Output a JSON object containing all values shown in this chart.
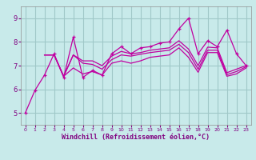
{
  "background_color": "#c8eaea",
  "grid_color": "#a0c8c8",
  "line_color": "#c000a0",
  "xlabel": "Windchill (Refroidissement éolien,°C)",
  "xlim": [
    -0.5,
    23.5
  ],
  "ylim": [
    4.5,
    9.5
  ],
  "yticks": [
    5,
    6,
    7,
    8,
    9
  ],
  "xticks": [
    0,
    1,
    2,
    3,
    4,
    5,
    6,
    7,
    8,
    9,
    10,
    11,
    12,
    13,
    14,
    15,
    16,
    17,
    18,
    19,
    20,
    21,
    22,
    23
  ],
  "series": [
    {
      "x": [
        0,
        1,
        2,
        3,
        4,
        5,
        6,
        7,
        8,
        9,
        10,
        11,
        12,
        13,
        14,
        15,
        16,
        17,
        18,
        19,
        20,
        21,
        22,
        23
      ],
      "y": [
        5.0,
        5.95,
        6.6,
        7.5,
        6.5,
        8.2,
        6.5,
        6.8,
        6.6,
        7.5,
        7.8,
        7.5,
        7.75,
        7.8,
        7.95,
        8.0,
        8.55,
        9.0,
        7.5,
        8.05,
        7.8,
        8.5,
        7.5,
        7.0
      ],
      "marker": "+"
    },
    {
      "x": [
        2,
        3,
        4,
        5,
        6,
        7,
        8,
        9,
        10,
        11,
        12,
        13,
        14,
        15,
        16,
        17,
        18,
        19,
        20,
        21,
        22,
        23
      ],
      "y": [
        7.45,
        7.45,
        6.55,
        7.45,
        7.2,
        7.2,
        7.0,
        7.4,
        7.6,
        7.5,
        7.55,
        7.65,
        7.7,
        7.75,
        8.05,
        7.7,
        7.0,
        7.78,
        7.75,
        6.7,
        6.85,
        7.0
      ],
      "marker": null
    },
    {
      "x": [
        2,
        3,
        4,
        5,
        6,
        7,
        8,
        9,
        10,
        11,
        12,
        13,
        14,
        15,
        16,
        17,
        18,
        19,
        20,
        21,
        22,
        23
      ],
      "y": [
        7.45,
        7.45,
        6.55,
        7.45,
        7.1,
        7.05,
        6.85,
        7.25,
        7.45,
        7.4,
        7.48,
        7.55,
        7.6,
        7.65,
        7.9,
        7.55,
        6.85,
        7.65,
        7.65,
        6.62,
        6.75,
        6.95
      ],
      "marker": null
    },
    {
      "x": [
        2,
        3,
        4,
        5,
        6,
        7,
        8,
        9,
        10,
        11,
        12,
        13,
        14,
        15,
        16,
        17,
        18,
        19,
        20,
        21,
        22,
        23
      ],
      "y": [
        7.45,
        7.45,
        6.55,
        6.9,
        6.65,
        6.75,
        6.6,
        7.1,
        7.2,
        7.1,
        7.2,
        7.35,
        7.4,
        7.45,
        7.75,
        7.35,
        6.72,
        7.55,
        7.55,
        6.55,
        6.65,
        6.9
      ],
      "marker": null
    }
  ],
  "tick_color": "#800080",
  "xlabel_color": "#800080",
  "xlabel_fontsize": 6,
  "xtick_fontsize": 4.5,
  "ytick_fontsize": 6
}
